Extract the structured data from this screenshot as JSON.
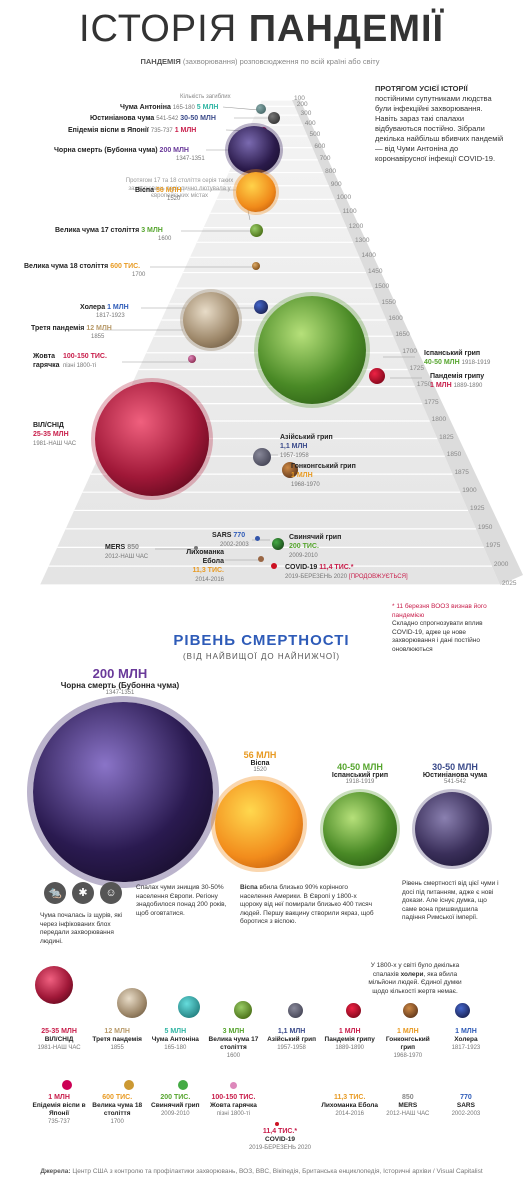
{
  "title_light": "ІСТОРІЯ",
  "title_bold": "ПАНДЕМІЇ",
  "subtitle_bold": "ПАНДЕМІЯ",
  "subtitle_rest": "(захворювання) розповсюдження по всій країні або світу",
  "deaths_label": "Кількість загиблих",
  "intro_bold": "ПРОТЯГОМ УСІЄЇ ІСТОРІЇ",
  "intro_rest": "постійними супутниками людства були інфекційні захворювання. Навіть зараз такі спалахи відбуваються постійно. Зібрали декілька найбільш вбивчих пандемій — від Чуми Антоніна до коронавірусної інфекції COVID-19.",
  "plague_note": "Протягом 17 та 18 століття серія таких захворювань періодично лютувала у європейських містах",
  "ticks": [
    "100",
    "200",
    "300",
    "400",
    "500",
    "600",
    "700",
    "800",
    "900",
    "1000",
    "1100",
    "1200",
    "1300",
    "1400",
    "1450",
    "1500",
    "1550",
    "1600",
    "1650",
    "1700",
    "1725",
    "1750",
    "1775",
    "1800",
    "1825",
    "1850",
    "1875",
    "1900",
    "1925",
    "1950",
    "1975",
    "2000",
    "2025"
  ],
  "timeline": {
    "antonine": {
      "name": "Чума Антоніна",
      "years": "165-180",
      "deaths": "5 МЛН"
    },
    "justinian": {
      "name": "Юстиніанова чума",
      "years": "541-542",
      "deaths": "30-50 МЛН"
    },
    "japan": {
      "name": "Епідемія віспи в Японії",
      "years": "735-737",
      "deaths": "1 МЛН"
    },
    "black": {
      "name": "Чорна смерть (Бубонна чума)",
      "years": "1347-1351",
      "deaths": "200 МЛН"
    },
    "smallpox": {
      "name": "Віспа",
      "years": "1520",
      "deaths": "56 МЛН"
    },
    "plague17": {
      "name": "Велика чума 17 століття",
      "years": "1600",
      "deaths": "3 МЛН"
    },
    "plague18": {
      "name": "Велика чума 18 століття",
      "years": "1700",
      "deaths": "600 ТИС."
    },
    "cholera": {
      "name": "Холера",
      "years": "1817-1923",
      "deaths": "1 МЛН"
    },
    "third": {
      "name": "Третя пандемія",
      "years": "1855",
      "deaths": "12 МЛН"
    },
    "yellow": {
      "name": "Жовта гарячка",
      "years": "пізні 1800-ті",
      "deaths": "100-150 ТИС."
    },
    "spanish": {
      "name": "Іспанський грип",
      "years": "1918-1919",
      "deaths": "40-50 МЛН"
    },
    "flu": {
      "name": "Пандемія грипу",
      "years": "1889-1890",
      "deaths": "1 МЛН"
    },
    "hiv": {
      "name": "ВІЛ/СНІД",
      "years": "1981-НАШ ЧАС",
      "deaths": "25-35 МЛН"
    },
    "asian": {
      "name": "Азійський грип",
      "years": "1957-1958",
      "deaths": "1,1 МЛН"
    },
    "hk": {
      "name": "Гонконгський грип",
      "years": "1968-1970",
      "deaths": "1 МЛН"
    },
    "sars": {
      "name": "SARS",
      "years": "2002-2003",
      "deaths": "770"
    },
    "swine": {
      "name": "Свинячий грип",
      "years": "2009-2010",
      "deaths": "200 ТИС."
    },
    "mers": {
      "name": "MERS",
      "years": "2012-НАШ ЧАС",
      "deaths": "850"
    },
    "ebola": {
      "name": "Лихоманка Ебола",
      "years": "2014-2016",
      "deaths": "11,3 ТИС."
    },
    "covid": {
      "name": "COVID-19",
      "years": "2019-БЕРЕЗЕНЬ 2020",
      "deaths": "11,4 ТИС.*",
      "ongoing": "[ПРОДОВЖУЄТЬСЯ]"
    }
  },
  "footnote_red": "* 11 березня ВООЗ визнав його пандемією",
  "footnote_rest": "Складно спрогнозувати вплив COVID-19, адже це нове захворювання і дані постійно оновлюються",
  "mortality_title": "РІВЕНЬ СМЕРТНОСТІ",
  "mortality_sub": "(ВІД НАЙВИЩОЇ ДО НАЙНИЖЧОЇ)",
  "rank": {
    "black": {
      "deaths": "200 МЛН",
      "name": "Чорна смерть (Бубонна чума)",
      "years": "1347-1351"
    },
    "smallpox": {
      "deaths": "56 МЛН",
      "name": "Віспа",
      "years": "1520"
    },
    "spanish": {
      "deaths": "40-50 МЛН",
      "name": "Іспанський грип",
      "years": "1918-1919"
    },
    "justinian": {
      "deaths": "30-50 МЛН",
      "name": "Юстиніанова чума",
      "years": "541-542"
    }
  },
  "note_rats": "Чума почалась із щурів, які через інфікованих блох передали захворювання людині.",
  "note_black": "Спалах чуми знищив 30-50% населення Європи. Регіону знадобилося понад 200 років, щоб оговтатися.",
  "note_smallpox_bold": "Віспа",
  "note_smallpox": "вбила близько 90% корінного населення Америки. В Європі у 1800-х щороку від неї помирали близько 400 тисяч людей. Першу вакцину створили якраз, щоб боротися з віспою.",
  "note_justinian": "Рівень смертності від цієї чуми і досі під питанням, адже є нові докази. Але існує думка, що саме вона пришвидшила падіння Римської імперії.",
  "note_cholera_pre": "У 1800-х у світі було декілька спалахів",
  "note_cholera_bold": "холери",
  "note_cholera_post": ", яка вбила мільйони людей. Єдиної думки щодо кількості жертв немає.",
  "row1": [
    {
      "d": "25-35 МЛН",
      "n": "ВІЛ/СНІД",
      "y": "1981-НАШ ЧАС"
    },
    {
      "d": "12 МЛН",
      "n": "Третя пандемія",
      "y": "1855"
    },
    {
      "d": "5 МЛН",
      "n": "Чума Антоніна",
      "y": "165-180"
    },
    {
      "d": "3 МЛН",
      "n": "Велика чума 17 століття",
      "y": "1600"
    },
    {
      "d": "1,1 МЛН",
      "n": "Азійський грип",
      "y": "1957-1958"
    },
    {
      "d": "1 МЛН",
      "n": "Пандемія грипу",
      "y": "1889-1890"
    },
    {
      "d": "1 МЛН",
      "n": "Гонконгський грип",
      "y": "1968-1970"
    },
    {
      "d": "1 МЛН",
      "n": "Холера",
      "y": "1817-1923"
    }
  ],
  "row2": [
    {
      "d": "1 МЛН",
      "n": "Епідемія віспи в Японії",
      "y": "735-737"
    },
    {
      "d": "600 ТИС.",
      "n": "Велика чума 18 століття",
      "y": "1700"
    },
    {
      "d": "200 ТИС.",
      "n": "Свинячий грип",
      "y": "2009-2010"
    },
    {
      "d": "100-150 ТИС.",
      "n": "Жовта гарячка",
      "y": "пізні 1800-ті"
    },
    {
      "d": "11,3 ТИС.",
      "n": "Лихоманка Ебола",
      "y": "2014-2016"
    },
    {
      "d": "850",
      "n": "MERS",
      "y": "2012-НАШ ЧАС"
    },
    {
      "d": "770",
      "n": "SARS",
      "y": "2002-2003"
    }
  ],
  "covid_bottom": {
    "d": "11,4 ТИС.*",
    "n": "COVID-19",
    "y": "2019-БЕРЕЗЕНЬ 2020"
  },
  "sources_bold": "Джерела:",
  "sources": "Центр США з контролю та профілактики захворювань, ВОЗ, BBC, Вікіпедія, Британська енциклопедія, Історичні архіви / Visual Capitalist"
}
